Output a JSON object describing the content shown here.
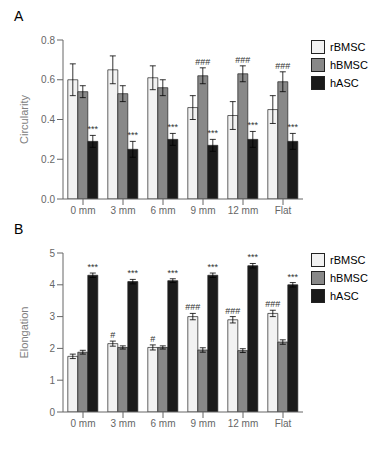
{
  "chart_data": [
    {
      "type": "bar",
      "title": "A",
      "categories": [
        "0 mm",
        "3 mm",
        "6 mm",
        "9 mm",
        "12 mm",
        "Flat"
      ],
      "series": [
        {
          "name": "rBMSC",
          "color": "#f2f2f2",
          "values": [
            0.6,
            0.65,
            0.61,
            0.46,
            0.42,
            0.45
          ],
          "errors": [
            0.08,
            0.07,
            0.06,
            0.06,
            0.07,
            0.07
          ],
          "annotations": [
            null,
            null,
            null,
            null,
            null,
            null
          ]
        },
        {
          "name": "hBMSC",
          "color": "#888888",
          "values": [
            0.54,
            0.53,
            0.56,
            0.62,
            0.63,
            0.59
          ],
          "errors": [
            0.03,
            0.04,
            0.04,
            0.04,
            0.04,
            0.05
          ],
          "annotations": [
            null,
            null,
            null,
            "###",
            "###",
            "###"
          ]
        },
        {
          "name": "hASC",
          "color": "#1a1a1a",
          "values": [
            0.29,
            0.25,
            0.3,
            0.27,
            0.3,
            0.29
          ],
          "errors": [
            0.03,
            0.04,
            0.03,
            0.03,
            0.04,
            0.04
          ],
          "annotations": [
            "***",
            "***",
            "***",
            "***",
            "***",
            "***"
          ]
        }
      ],
      "ylabel": "Circularity",
      "ylim": [
        0,
        0.8
      ],
      "yticks": [
        {
          "value": 0,
          "label": "0.0"
        },
        0.2,
        0.4,
        0.6,
        0.8
      ],
      "grid": false,
      "legend": "right"
    },
    {
      "type": "bar",
      "title": "B",
      "categories": [
        "0 mm",
        "3 mm",
        "6 mm",
        "9 mm",
        "12 mm",
        "Flat"
      ],
      "series": [
        {
          "name": "rBMSC",
          "color": "#f2f2f2",
          "values": [
            1.75,
            2.15,
            2.03,
            3.0,
            2.9,
            3.1
          ],
          "errors": [
            0.07,
            0.08,
            0.08,
            0.1,
            0.1,
            0.1
          ],
          "annotations": [
            null,
            "#",
            "#",
            "###",
            "###",
            "###"
          ]
        },
        {
          "name": "hBMSC",
          "color": "#888888",
          "values": [
            1.88,
            2.03,
            2.03,
            1.95,
            1.93,
            2.2
          ],
          "errors": [
            0.06,
            0.05,
            0.05,
            0.07,
            0.06,
            0.07
          ],
          "annotations": [
            null,
            null,
            null,
            null,
            null,
            null
          ]
        },
        {
          "name": "hASC",
          "color": "#1a1a1a",
          "values": [
            4.3,
            4.1,
            4.13,
            4.3,
            4.6,
            4.0
          ],
          "errors": [
            0.07,
            0.07,
            0.06,
            0.07,
            0.07,
            0.07
          ],
          "annotations": [
            "***",
            "***",
            "***",
            "***",
            "***",
            "***"
          ]
        }
      ],
      "ylabel": "Elongation",
      "ylim": [
        0,
        5
      ],
      "yticks": [
        0,
        1,
        2,
        3,
        4,
        5
      ],
      "grid": false,
      "legend": "right"
    }
  ]
}
